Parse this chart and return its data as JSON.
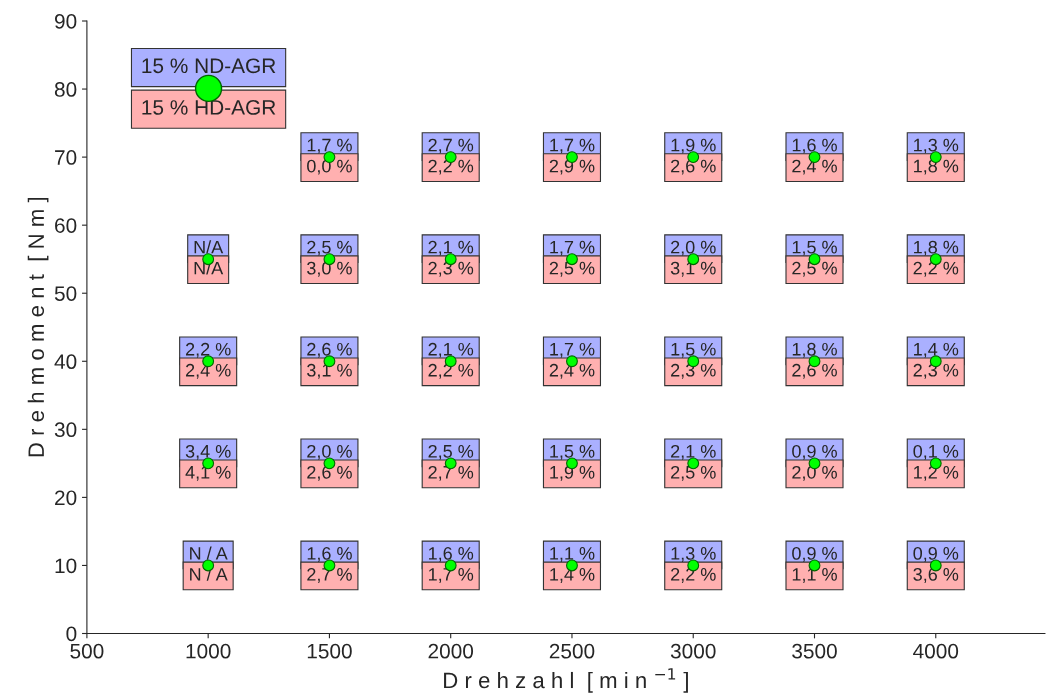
{
  "chart_data": {
    "type": "scatter",
    "xlabel": "D r e h z a h l  [ m i n $^{−1}$ ]",
    "ylabel": "D r e h m o m e n t  [ N m ]",
    "x": [
      1500,
      2000,
      2500,
      3000,
      3500,
      4000,
      1000,
      1500,
      2000,
      2500,
      3000,
      3500,
      4000,
      1000,
      1500,
      2000,
      2500,
      3000,
      3500,
      4000,
      1000,
      1500,
      2000,
      2500,
      3000,
      3500,
      4000,
      1000,
      1500,
      2000,
      2500,
      3000,
      3500,
      4000
    ],
    "series": [
      {
        "color": "#00ff00",
        "values": [
          70,
          70,
          70,
          70,
          70,
          70,
          55,
          55,
          55,
          55,
          55,
          55,
          55,
          40,
          40,
          40,
          40,
          40,
          40,
          40,
          25,
          25,
          25,
          25,
          25,
          25,
          25,
          10,
          10,
          10,
          10,
          10,
          10,
          10
        ]
      }
    ],
    "annotations": [
      "15 % ND-AGR",
      "15 % HD-AGR",
      {
        "text": "1,7 %",
        "x": 1500,
        "y": 70
      },
      {
        "text": "0,0 %",
        "x": 1500,
        "y": 70
      },
      {
        "text": "2,7 %",
        "x": 2000,
        "y": 70
      },
      {
        "text": "2,2 %",
        "x": 2000,
        "y": 70
      },
      {
        "text": "1,7 %",
        "x": 2500,
        "y": 70
      },
      {
        "text": "2,9 %",
        "x": 2500,
        "y": 70
      },
      {
        "text": "1,9 %",
        "x": 3000,
        "y": 70
      },
      {
        "text": "2,6 %",
        "x": 3000,
        "y": 70
      },
      {
        "text": "1,6 %",
        "x": 3500,
        "y": 70
      },
      {
        "text": "2,4 %",
        "x": 3500,
        "y": 70
      },
      {
        "text": "1,3 %",
        "x": 4000,
        "y": 70
      },
      {
        "text": "1,8 %",
        "x": 4000,
        "y": 70
      },
      {
        "text": "N/A",
        "x": 1000,
        "y": 55
      },
      {
        "text": "N/A",
        "x": 1000,
        "y": 55
      },
      {
        "text": "2,5 %",
        "x": 1500,
        "y": 55
      },
      {
        "text": "3,0 %",
        "x": 1500,
        "y": 55
      },
      {
        "text": "2,1 %",
        "x": 2000,
        "y": 55
      },
      {
        "text": "2,3 %",
        "x": 2000,
        "y": 55
      },
      {
        "text": "1,7 %",
        "x": 2500,
        "y": 55
      },
      {
        "text": "2,5 %",
        "x": 2500,
        "y": 55
      },
      {
        "text": "2,0 %",
        "x": 3000,
        "y": 55
      },
      {
        "text": "3,1 %",
        "x": 3000,
        "y": 55
      },
      {
        "text": "1,5 %",
        "x": 3500,
        "y": 55
      },
      {
        "text": "2,5 %",
        "x": 3500,
        "y": 55
      },
      {
        "text": "1,8 %",
        "x": 4000,
        "y": 55
      },
      {
        "text": "2,2 %",
        "x": 4000,
        "y": 55
      },
      {
        "text": "2,2 %",
        "x": 1000,
        "y": 40
      },
      {
        "text": "2,4 %",
        "x": 1000,
        "y": 40
      },
      {
        "text": "2,6 %",
        "x": 1500,
        "y": 40
      },
      {
        "text": "3,1 %",
        "x": 1500,
        "y": 40
      },
      {
        "text": "2,1 %",
        "x": 2000,
        "y": 40
      },
      {
        "text": "2,2 %",
        "x": 2000,
        "y": 40
      },
      {
        "text": "1,7 %",
        "x": 2500,
        "y": 40
      },
      {
        "text": "2,4 %",
        "x": 2500,
        "y": 40
      },
      {
        "text": "1,5 %",
        "x": 3000,
        "y": 40
      },
      {
        "text": "2,3 %",
        "x": 3000,
        "y": 40
      },
      {
        "text": "1,8 %",
        "x": 3500,
        "y": 40
      },
      {
        "text": "2,6 %",
        "x": 3500,
        "y": 40
      },
      {
        "text": "1,4 %",
        "x": 4000,
        "y": 40
      },
      {
        "text": "2,3 %",
        "x": 4000,
        "y": 40
      },
      {
        "text": "3,4 %",
        "x": 1000,
        "y": 25
      },
      {
        "text": "4,1 %",
        "x": 1000,
        "y": 25
      },
      {
        "text": "2,0 %",
        "x": 1500,
        "y": 25
      },
      {
        "text": "2,6 %",
        "x": 1500,
        "y": 25
      },
      {
        "text": "2,5 %",
        "x": 2000,
        "y": 25
      },
      {
        "text": "2,7 %",
        "x": 2000,
        "y": 25
      },
      {
        "text": "1,5 %",
        "x": 2500,
        "y": 25
      },
      {
        "text": "1,9 %",
        "x": 2500,
        "y": 25
      },
      {
        "text": "2,1 %",
        "x": 3000,
        "y": 25
      },
      {
        "text": "2,5 %",
        "x": 3000,
        "y": 25
      },
      {
        "text": "0,9 %",
        "x": 3500,
        "y": 25
      },
      {
        "text": "2,0 %",
        "x": 3500,
        "y": 25
      },
      {
        "text": "0,1 %",
        "x": 4000,
        "y": 25
      },
      {
        "text": "1,2 %",
        "x": 4000,
        "y": 25
      },
      {
        "text": "N / A",
        "x": 1000,
        "y": 10
      },
      {
        "text": "N / A",
        "x": 1000,
        "y": 10
      },
      {
        "text": "1,6 %",
        "x": 1500,
        "y": 10
      },
      {
        "text": "2,7 %",
        "x": 1500,
        "y": 10
      },
      {
        "text": "1,6 %",
        "x": 2000,
        "y": 10
      },
      {
        "text": "1,7 %",
        "x": 2000,
        "y": 10
      },
      {
        "text": "1,1 %",
        "x": 2500,
        "y": 10
      },
      {
        "text": "1,4 %",
        "x": 2500,
        "y": 10
      },
      {
        "text": "1,3 %",
        "x": 3000,
        "y": 10
      },
      {
        "text": "2,2 %",
        "x": 3000,
        "y": 10
      },
      {
        "text": "0,9 %",
        "x": 3500,
        "y": 10
      },
      {
        "text": "1,1 %",
        "x": 3500,
        "y": 10
      },
      {
        "text": "0,9 %",
        "x": 4000,
        "y": 10
      },
      {
        "text": "3,6 %",
        "x": 4000,
        "y": 10
      }
    ],
    "xlim": [
      500,
      4450
    ],
    "xticks": [
      500,
      1000,
      1500,
      2000,
      2500,
      3000,
      3500,
      4000
    ],
    "ylim": [
      0,
      90
    ],
    "yticks": [
      0,
      10,
      20,
      30,
      40,
      50,
      60,
      70,
      80,
      90
    ],
    "grid": false,
    "marker": "circle"
  }
}
